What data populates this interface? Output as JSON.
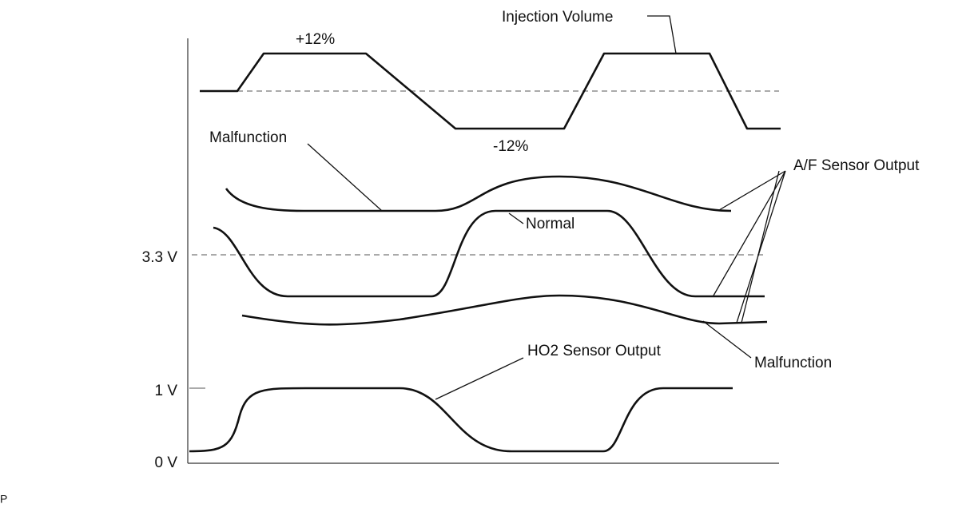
{
  "labels": {
    "injection_volume": "Injection Volume",
    "plus": "+12%",
    "minus": "-12%",
    "malfunction_upper": "Malfunction",
    "normal": "Normal",
    "af_output": "A/F Sensor Output",
    "malfunction_lower": "Malfunction",
    "ho2_output": "HO2 Sensor Output",
    "v33": "3.3 V",
    "v1": "1 V",
    "v0": "0 V",
    "corner": "P"
  }
}
